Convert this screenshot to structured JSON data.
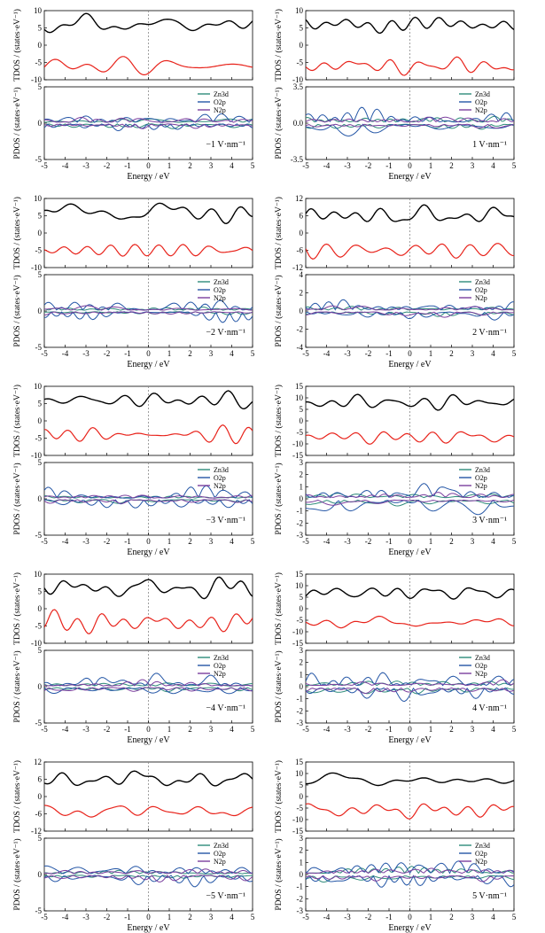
{
  "figure": {
    "xlabel": "Energy / eV",
    "tdos_ylabel": "TDOS / (states·eV⁻¹)",
    "pdos_ylabel": "PDOS / (states·eV⁻¹)",
    "legend": [
      "Zn3d",
      "O2p",
      "N2p"
    ]
  },
  "colors": {
    "tdos_black": "#000000",
    "tdos_red": "#e8231b",
    "zn3d": "#2e8b7a",
    "o2p": "#2456a6",
    "n2p": "#7b3f9e",
    "fermi": "#888888"
  },
  "chart_data": [
    {
      "type": "line",
      "field": "−1 V·nm⁻¹",
      "x_range": [
        -5,
        5
      ],
      "x_ticks": [
        "-5",
        "-4",
        "-3",
        "-2",
        "-1",
        "0",
        "1",
        "2",
        "3",
        "4",
        "5"
      ],
      "tdos_ylim": [
        -10,
        10
      ],
      "tdos_yticks": [
        "10",
        "5",
        "0",
        "-5",
        "-10"
      ],
      "pdos_ylim": [
        -5,
        5
      ],
      "pdos_yticks": [
        "5",
        "0",
        "-5"
      ],
      "black_base": 6,
      "black_amp": 2.5,
      "red_base": -6,
      "red_amp": 2.5,
      "zn_amp": 1.0,
      "o_amp": 2.0,
      "n_amp": 1.0,
      "seed": 1
    },
    {
      "type": "line",
      "field": "1 V·nm⁻¹",
      "x_range": [
        -5,
        5
      ],
      "x_ticks": [
        "-5",
        "-4",
        "-3",
        "-2",
        "-1",
        "0",
        "1",
        "2",
        "3",
        "4",
        "5"
      ],
      "tdos_ylim": [
        -10,
        10
      ],
      "tdos_yticks": [
        "10",
        "5",
        "0",
        "-5",
        "-10"
      ],
      "pdos_ylim": [
        -3.5,
        3.5
      ],
      "pdos_yticks": [
        "3.5",
        "0.0",
        "-3.5"
      ],
      "black_base": 6,
      "black_amp": 3,
      "red_base": -6,
      "red_amp": 2.5,
      "zn_amp": 0.8,
      "o_amp": 1.8,
      "n_amp": 0.8,
      "seed": 2
    },
    {
      "type": "line",
      "field": "−2 V·nm⁻¹",
      "x_range": [
        -5,
        5
      ],
      "x_ticks": [
        "-5",
        "-4",
        "-3",
        "-2",
        "-1",
        "0",
        "1",
        "2",
        "3",
        "4",
        "5"
      ],
      "tdos_ylim": [
        -10,
        10
      ],
      "tdos_yticks": [
        "10",
        "5",
        "0",
        "-5",
        "-10"
      ],
      "pdos_ylim": [
        -5,
        5
      ],
      "pdos_yticks": [
        "5",
        "0",
        "-5"
      ],
      "black_base": 6,
      "black_amp": 3,
      "red_base": -5,
      "red_amp": 3,
      "zn_amp": 0.8,
      "o_amp": 2.2,
      "n_amp": 1.0,
      "seed": 3
    },
    {
      "type": "line",
      "field": "2 V·nm⁻¹",
      "x_range": [
        -5,
        5
      ],
      "x_ticks": [
        "-5",
        "-4",
        "-3",
        "-2",
        "-1",
        "0",
        "1",
        "2",
        "3",
        "4",
        "5"
      ],
      "tdos_ylim": [
        -12,
        12
      ],
      "tdos_yticks": [
        "12",
        "6",
        "0",
        "-6",
        "-12"
      ],
      "pdos_ylim": [
        -4,
        4
      ],
      "pdos_yticks": [
        "4",
        "2",
        "0",
        "-2",
        "-4"
      ],
      "black_base": 6,
      "black_amp": 3,
      "red_base": -6,
      "red_amp": 3,
      "zn_amp": 0.8,
      "o_amp": 1.8,
      "n_amp": 0.8,
      "seed": 4
    },
    {
      "type": "line",
      "field": "−3 V·nm⁻¹",
      "x_range": [
        -5,
        5
      ],
      "x_ticks": [
        "-5",
        "-4",
        "-3",
        "-2",
        "-1",
        "0",
        "1",
        "2",
        "3",
        "4",
        "5"
      ],
      "tdos_ylim": [
        -10,
        10
      ],
      "tdos_yticks": [
        "10",
        "5",
        "0",
        "-5",
        "-10"
      ],
      "pdos_ylim": [
        -5,
        5
      ],
      "pdos_yticks": [
        "5",
        "0",
        "-5"
      ],
      "black_base": 6,
      "black_amp": 3,
      "red_base": -4,
      "red_amp": 2.5,
      "zn_amp": 0.8,
      "o_amp": 2.2,
      "n_amp": 0.8,
      "seed": 5
    },
    {
      "type": "line",
      "field": "3 V·nm⁻¹",
      "x_range": [
        -5,
        5
      ],
      "x_ticks": [
        "-5",
        "-4",
        "-3",
        "-2",
        "-1",
        "0",
        "1",
        "2",
        "3",
        "4",
        "5"
      ],
      "tdos_ylim": [
        -15,
        15
      ],
      "tdos_yticks": [
        "15",
        "10",
        "5",
        "0",
        "-5",
        "-10",
        "-15"
      ],
      "pdos_ylim": [
        -3,
        3
      ],
      "pdos_yticks": [
        "3",
        "2",
        "1",
        "0",
        "-1",
        "-2",
        "-3"
      ],
      "black_base": 8,
      "black_amp": 3,
      "red_base": -7,
      "red_amp": 3,
      "zn_amp": 0.7,
      "o_amp": 1.6,
      "n_amp": 0.7,
      "seed": 6
    },
    {
      "type": "line",
      "field": "−4 V·nm⁻¹",
      "x_range": [
        -5,
        5
      ],
      "x_ticks": [
        "-5",
        "-4",
        "-3",
        "-2",
        "-1",
        "0",
        "1",
        "2",
        "3",
        "4",
        "5"
      ],
      "tdos_ylim": [
        -10,
        10
      ],
      "tdos_yticks": [
        "10",
        "5",
        "0",
        "-5",
        "-10"
      ],
      "pdos_ylim": [
        -5,
        5
      ],
      "pdos_yticks": [
        "5",
        "0",
        "-5"
      ],
      "black_base": 6,
      "black_amp": 3,
      "red_base": -4,
      "red_amp": 3,
      "zn_amp": 0.8,
      "o_amp": 2.2,
      "n_amp": 1.0,
      "seed": 7
    },
    {
      "type": "line",
      "field": "4 V·nm⁻¹",
      "x_range": [
        -5,
        5
      ],
      "x_ticks": [
        "-5",
        "-4",
        "-3",
        "-2",
        "-1",
        "0",
        "1",
        "2",
        "3",
        "4",
        "5"
      ],
      "tdos_ylim": [
        -15,
        15
      ],
      "tdos_yticks": [
        "15",
        "10",
        "5",
        "0",
        "-5",
        "-10",
        "-15"
      ],
      "pdos_ylim": [
        -3,
        3
      ],
      "pdos_yticks": [
        "3",
        "2",
        "1",
        "0",
        "-1",
        "-2",
        "-3"
      ],
      "black_base": 7,
      "black_amp": 3,
      "red_base": -6,
      "red_amp": 2.5,
      "zn_amp": 0.7,
      "o_amp": 1.6,
      "n_amp": 0.7,
      "seed": 8
    },
    {
      "type": "line",
      "field": "−5 V·nm⁻¹",
      "x_range": [
        -5,
        5
      ],
      "x_ticks": [
        "-5",
        "-4",
        "-3",
        "-2",
        "-1",
        "0",
        "1",
        "2",
        "3",
        "4",
        "5"
      ],
      "tdos_ylim": [
        -12,
        12
      ],
      "tdos_yticks": [
        "12",
        "6",
        "0",
        "-6",
        "-12"
      ],
      "pdos_ylim": [
        -5,
        5
      ],
      "pdos_yticks": [
        "5",
        "0",
        "-5"
      ],
      "black_base": 6,
      "black_amp": 3,
      "red_base": -5,
      "red_amp": 3,
      "zn_amp": 0.8,
      "o_amp": 2.2,
      "n_amp": 1.2,
      "seed": 9
    },
    {
      "type": "line",
      "field": "5 V·nm⁻¹",
      "x_range": [
        -5,
        5
      ],
      "x_ticks": [
        "-5",
        "-4",
        "-3",
        "-2",
        "-1",
        "0",
        "1",
        "2",
        "3",
        "4",
        "5"
      ],
      "tdos_ylim": [
        -15,
        15
      ],
      "tdos_yticks": [
        "15",
        "10",
        "5",
        "0",
        "-5",
        "-10",
        "-15"
      ],
      "pdos_ylim": [
        -3,
        3
      ],
      "pdos_yticks": [
        "3",
        "2",
        "1",
        "0",
        "-1",
        "-2",
        "-3"
      ],
      "black_base": 7,
      "black_amp": 3,
      "red_base": -6,
      "red_amp": 3,
      "zn_amp": 0.7,
      "o_amp": 1.6,
      "n_amp": 0.7,
      "seed": 10
    }
  ]
}
